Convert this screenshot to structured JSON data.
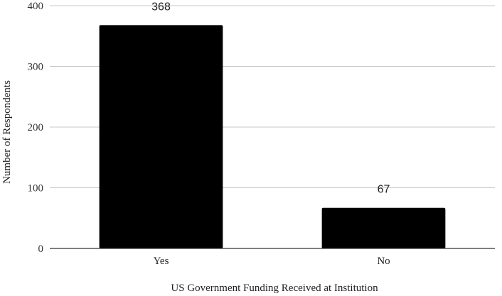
{
  "chart_data": {
    "type": "bar",
    "categories": [
      "Yes",
      "No"
    ],
    "values": [
      368,
      67
    ],
    "data_labels": [
      "368",
      "67"
    ],
    "title": "",
    "xlabel": "US Government Funding Received at Institution",
    "ylabel": "Number of Respondents",
    "ylim": [
      0,
      400
    ],
    "yticks": [
      0,
      100,
      200,
      300,
      400
    ],
    "grid": true,
    "legend": "none",
    "bar_color": "#000000",
    "grid_color": "#c8c8c8"
  }
}
